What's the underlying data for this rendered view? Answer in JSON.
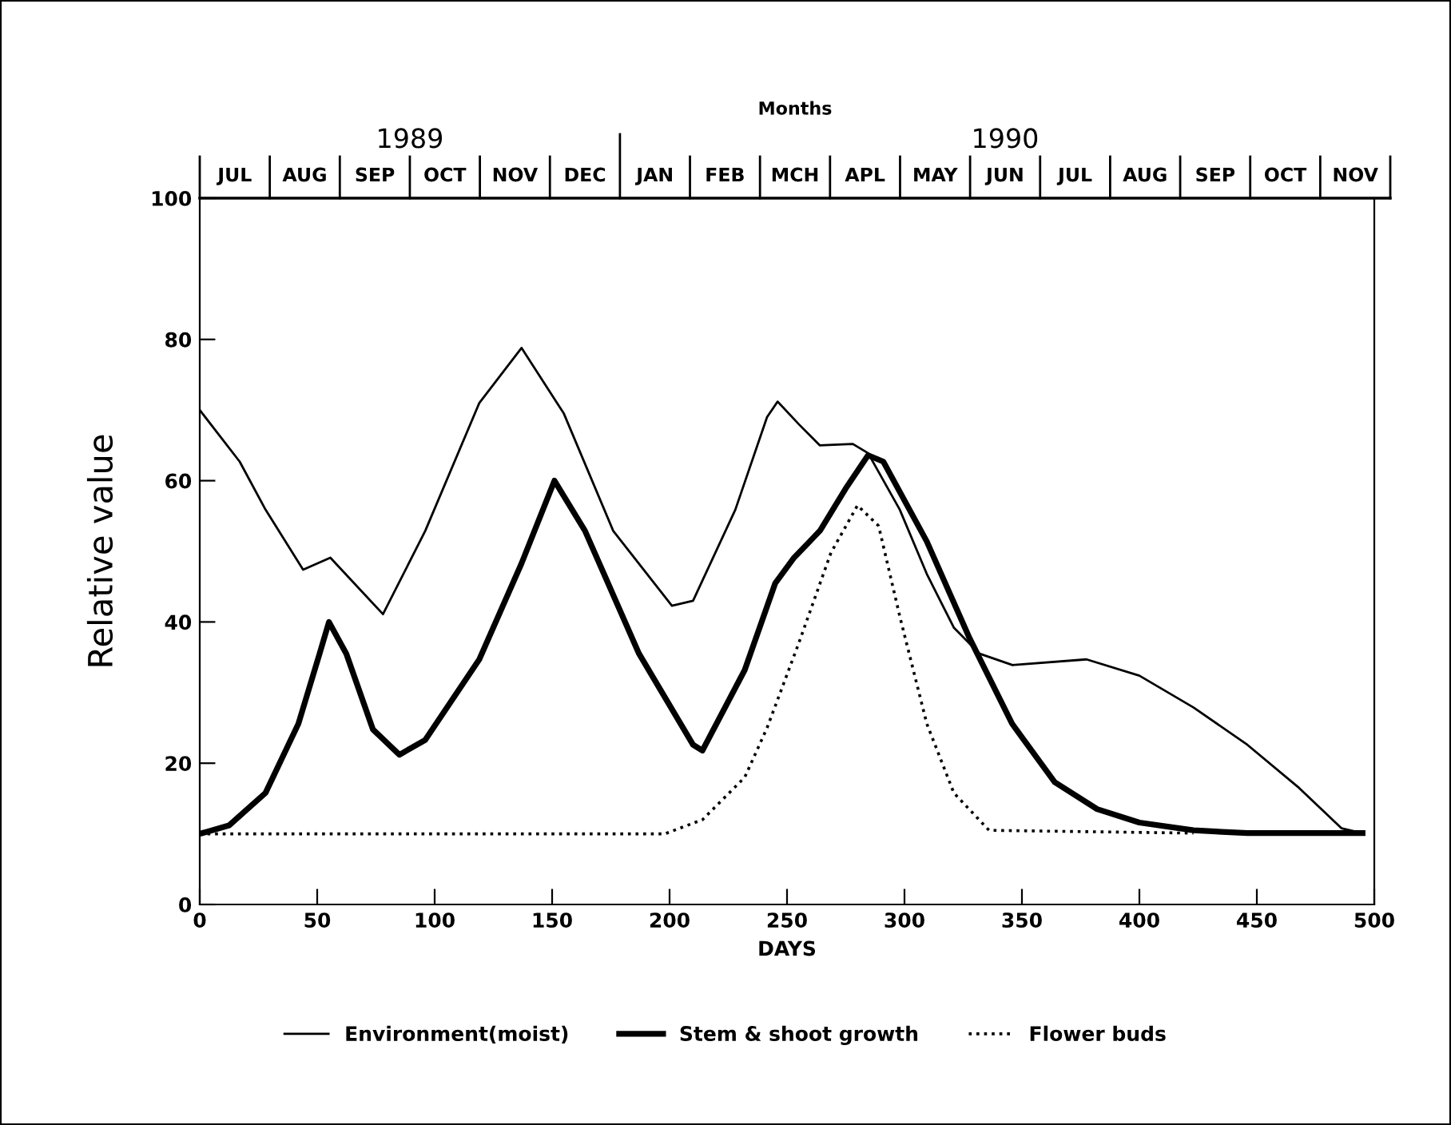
{
  "chart_data": {
    "type": "line",
    "xlabel": "DAYS",
    "ylabel": "Relative value",
    "xlim": [
      0,
      500
    ],
    "xticks": [
      0,
      50,
      100,
      150,
      200,
      250,
      300,
      350,
      400,
      450,
      500
    ],
    "ylim": [
      0,
      100
    ],
    "yticks": [
      0,
      20,
      40,
      60,
      80,
      100
    ],
    "annotations": [
      "JUL",
      "AUG",
      "SEP",
      "OCT",
      "NOV",
      "DEC",
      "JAN",
      "FEB",
      "MCH",
      "APL",
      "MAY",
      "JUN",
      "JUL",
      "AUG",
      "SEP",
      "OCT",
      "NOV",
      "1989",
      "1990",
      "Months"
    ],
    "grid": false,
    "legend": "bottom",
    "marker": "none",
    "series": [
      {
        "name": "Environment(moist)",
        "color": "#000000",
        "line_style": "solid",
        "x": [
          0,
          17,
          28,
          44,
          55.6,
          78,
          96,
          119,
          137,
          155,
          176,
          201,
          210,
          228,
          241.5,
          246,
          255,
          264,
          278,
          284.5,
          298,
          309.5,
          321,
          332,
          346,
          377.5,
          400,
          423,
          446,
          468,
          486,
          495
        ],
        "values": [
          70,
          62.7,
          55.9,
          47.4,
          49.1,
          41.1,
          52.9,
          71,
          78.8,
          69.5,
          52.9,
          42.3,
          43,
          55.9,
          69,
          71.2,
          68,
          65,
          65.2,
          63.9,
          55.9,
          46.8,
          39.2,
          35.5,
          33.9,
          34.7,
          32.4,
          27.9,
          22.6,
          16.5,
          10.8,
          10.1
        ]
      },
      {
        "name": "Stem & shoot growth",
        "color": "#000000",
        "line_style": "solid",
        "x": [
          0,
          12.5,
          28,
          42,
          51,
          55,
          62.4,
          73.7,
          85,
          96,
          119,
          137,
          151,
          164,
          187,
          210,
          214,
          232,
          245,
          253,
          264,
          275,
          284.5,
          291,
          309.5,
          327.7,
          345.8,
          364,
          382,
          400,
          423,
          446,
          495
        ],
        "values": [
          10,
          11.2,
          15.8,
          25.6,
          35.5,
          40,
          35.5,
          24.8,
          21.2,
          23.3,
          34.7,
          48.3,
          60,
          52.9,
          35.5,
          22.6,
          21.8,
          33.2,
          45.5,
          49.1,
          52.9,
          58.9,
          63.6,
          62.7,
          51.4,
          37.7,
          25.6,
          17.3,
          13.5,
          11.6,
          10.5,
          10.1,
          10.1
        ]
      },
      {
        "name": "Flower buds",
        "color": "#000000",
        "line_style": "dotted",
        "x": [
          0,
          198,
          214,
          232,
          241.5,
          255,
          268.7,
          280,
          289,
          298,
          309.5,
          321,
          336,
          423
        ],
        "values": [
          10,
          10,
          12,
          18,
          25,
          37,
          49.8,
          56.5,
          53.6,
          40.8,
          25.6,
          15.8,
          10.5,
          10.1
        ]
      }
    ]
  }
}
